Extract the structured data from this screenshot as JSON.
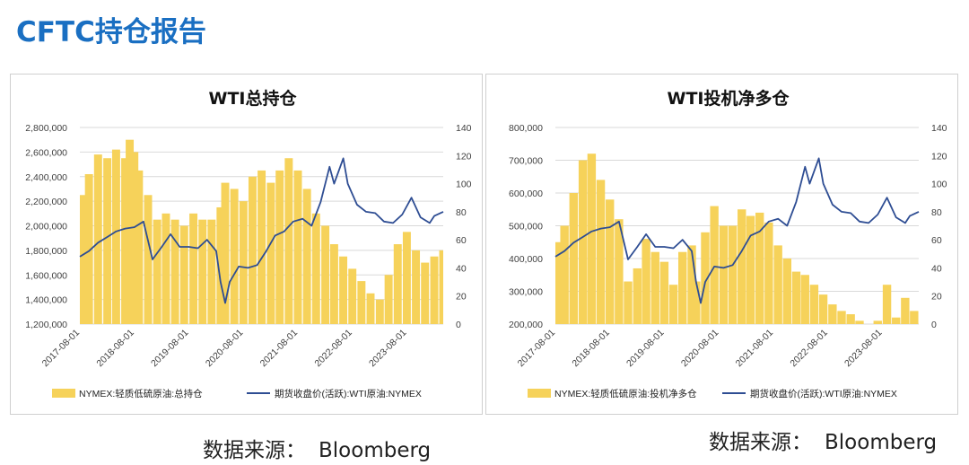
{
  "page": {
    "title": "CFTC持仓报告"
  },
  "colors": {
    "title": "#1a6fc2",
    "bar": "#f6d25a",
    "line": "#2e4d93",
    "grid": "#d9d9d9",
    "axis": "#404040"
  },
  "x_ticks": [
    "2017-08-01",
    "2018-08-01",
    "2019-08-01",
    "2020-08-01",
    "2021-08-01",
    "2022-08-01",
    "2023-08-01"
  ],
  "chart_data": [
    {
      "type": "bar",
      "title": "WTI总持仓",
      "grid": true,
      "legend_position": "bottom",
      "y_left": {
        "min": 1200000,
        "max": 2800000,
        "step": 200000,
        "labels": [
          "1,200,000",
          "1,400,000",
          "1,600,000",
          "1,800,000",
          "2,000,000",
          "2,200,000",
          "2,400,000",
          "2,600,000",
          "2,800,000"
        ]
      },
      "y_right": {
        "min": 0,
        "max": 140,
        "step": 20,
        "labels": [
          "0",
          "20",
          "40",
          "60",
          "80",
          "100",
          "120",
          "140"
        ]
      },
      "x_range": [
        "2017-08-01",
        "2024-04-01"
      ],
      "series": [
        {
          "name": "NYMEX:轻质低硫原油:总持仓",
          "type": "bar",
          "axis": "left",
          "x": [
            "2017-08-01",
            "2017-10-01",
            "2017-12-01",
            "2018-02-01",
            "2018-04-01",
            "2018-06-01",
            "2018-07-01",
            "2018-08-01",
            "2018-09-01",
            "2018-11-01",
            "2019-01-01",
            "2019-03-01",
            "2019-05-01",
            "2019-07-01",
            "2019-09-01",
            "2019-11-01",
            "2020-01-01",
            "2020-03-01",
            "2020-04-01",
            "2020-06-01",
            "2020-08-01",
            "2020-10-01",
            "2020-12-01",
            "2021-02-01",
            "2021-04-01",
            "2021-06-01",
            "2021-08-01",
            "2021-10-01",
            "2021-12-01",
            "2022-02-01",
            "2022-04-01",
            "2022-06-01",
            "2022-08-01",
            "2022-10-01",
            "2022-12-01",
            "2023-02-01",
            "2023-04-01",
            "2023-06-01",
            "2023-08-01",
            "2023-10-01",
            "2023-12-01",
            "2024-02-01",
            "2024-04-01"
          ],
          "values": [
            2250000,
            2420000,
            2580000,
            2550000,
            2620000,
            2550000,
            2700000,
            2600000,
            2450000,
            2250000,
            2050000,
            2100000,
            2050000,
            2000000,
            2100000,
            2050000,
            2050000,
            2150000,
            2350000,
            2300000,
            2200000,
            2400000,
            2450000,
            2350000,
            2450000,
            2550000,
            2450000,
            2300000,
            2100000,
            2000000,
            1850000,
            1750000,
            1650000,
            1550000,
            1450000,
            1400000,
            1600000,
            1850000,
            1950000,
            1800000,
            1700000,
            1750000,
            1800000
          ]
        },
        {
          "name": "期货收盘价(活跃):WTI原油:NYMEX",
          "type": "line",
          "axis": "right",
          "x": [
            "2017-08-01",
            "2017-10-01",
            "2017-12-01",
            "2018-02-01",
            "2018-04-01",
            "2018-06-01",
            "2018-08-01",
            "2018-10-01",
            "2018-12-01",
            "2019-02-01",
            "2019-04-01",
            "2019-06-01",
            "2019-08-01",
            "2019-10-01",
            "2019-12-01",
            "2020-02-01",
            "2020-03-01",
            "2020-04-01",
            "2020-05-01",
            "2020-07-01",
            "2020-09-01",
            "2020-11-01",
            "2021-01-01",
            "2021-03-01",
            "2021-05-01",
            "2021-07-01",
            "2021-09-01",
            "2021-11-01",
            "2022-01-01",
            "2022-03-01",
            "2022-04-01",
            "2022-06-01",
            "2022-07-01",
            "2022-09-01",
            "2022-11-01",
            "2023-01-01",
            "2023-03-01",
            "2023-05-01",
            "2023-07-01",
            "2023-09-01",
            "2023-11-01",
            "2024-01-01",
            "2024-02-01",
            "2024-04-01"
          ],
          "values": [
            48,
            52,
            58,
            62,
            66,
            68,
            69,
            73,
            46,
            55,
            64,
            55,
            55,
            54,
            60,
            52,
            30,
            15,
            30,
            41,
            40,
            42,
            52,
            63,
            66,
            73,
            75,
            70,
            87,
            112,
            100,
            118,
            100,
            85,
            80,
            79,
            73,
            72,
            78,
            90,
            76,
            72,
            77,
            80
          ]
        }
      ]
    },
    {
      "type": "bar",
      "title": "WTI投机净多仓",
      "grid": true,
      "legend_position": "bottom",
      "y_left": {
        "min": 200000,
        "max": 800000,
        "step": 100000,
        "labels": [
          "200,000",
          "300,000",
          "400,000",
          "500,000",
          "600,000",
          "700,000",
          "800,000"
        ]
      },
      "y_right": {
        "min": 0,
        "max": 140,
        "step": 20,
        "labels": [
          "0",
          "20",
          "40",
          "60",
          "80",
          "100",
          "120",
          "140"
        ]
      },
      "x_range": [
        "2017-08-01",
        "2024-04-01"
      ],
      "series": [
        {
          "name": "NYMEX:轻质低硫原油:投机净多仓",
          "type": "bar",
          "axis": "left",
          "x": [
            "2017-08-01",
            "2017-10-01",
            "2017-12-01",
            "2018-02-01",
            "2018-04-01",
            "2018-06-01",
            "2018-08-01",
            "2018-10-01",
            "2018-12-01",
            "2019-02-01",
            "2019-04-01",
            "2019-06-01",
            "2019-08-01",
            "2019-10-01",
            "2019-12-01",
            "2020-02-01",
            "2020-03-01",
            "2020-05-01",
            "2020-07-01",
            "2020-09-01",
            "2020-11-01",
            "2021-01-01",
            "2021-03-01",
            "2021-05-01",
            "2021-07-01",
            "2021-09-01",
            "2021-11-01",
            "2022-01-01",
            "2022-03-01",
            "2022-05-01",
            "2022-07-01",
            "2022-09-01",
            "2022-11-01",
            "2023-01-01",
            "2023-03-01",
            "2023-05-01",
            "2023-07-01",
            "2023-09-01",
            "2023-11-01",
            "2024-01-01",
            "2024-03-01"
          ],
          "values": [
            450000,
            500000,
            600000,
            700000,
            720000,
            640000,
            580000,
            520000,
            330000,
            370000,
            460000,
            420000,
            390000,
            320000,
            420000,
            440000,
            330000,
            480000,
            560000,
            500000,
            500000,
            550000,
            530000,
            540000,
            510000,
            440000,
            400000,
            360000,
            350000,
            320000,
            290000,
            260000,
            240000,
            230000,
            210000,
            200000,
            210000,
            320000,
            220000,
            280000,
            240000
          ]
        },
        {
          "name": "期货收盘价(活跃):WTI原油:NYMEX",
          "type": "line",
          "axis": "right",
          "x": [
            "2017-08-01",
            "2017-10-01",
            "2017-12-01",
            "2018-02-01",
            "2018-04-01",
            "2018-06-01",
            "2018-08-01",
            "2018-10-01",
            "2018-12-01",
            "2019-02-01",
            "2019-04-01",
            "2019-06-01",
            "2019-08-01",
            "2019-10-01",
            "2019-12-01",
            "2020-02-01",
            "2020-03-01",
            "2020-04-01",
            "2020-05-01",
            "2020-07-01",
            "2020-09-01",
            "2020-11-01",
            "2021-01-01",
            "2021-03-01",
            "2021-05-01",
            "2021-07-01",
            "2021-09-01",
            "2021-11-01",
            "2022-01-01",
            "2022-03-01",
            "2022-04-01",
            "2022-06-01",
            "2022-07-01",
            "2022-09-01",
            "2022-11-01",
            "2023-01-01",
            "2023-03-01",
            "2023-05-01",
            "2023-07-01",
            "2023-09-01",
            "2023-11-01",
            "2024-01-01",
            "2024-02-01",
            "2024-04-01"
          ],
          "values": [
            48,
            52,
            58,
            62,
            66,
            68,
            69,
            73,
            46,
            55,
            64,
            55,
            55,
            54,
            60,
            52,
            30,
            15,
            30,
            41,
            40,
            42,
            52,
            63,
            66,
            73,
            75,
            70,
            87,
            112,
            100,
            118,
            100,
            85,
            80,
            79,
            73,
            72,
            78,
            90,
            76,
            72,
            77,
            80
          ]
        }
      ]
    }
  ],
  "sources": [
    {
      "label": "数据来源：",
      "name": "Bloomberg"
    },
    {
      "label": "数据来源：",
      "name": "Bloomberg"
    }
  ]
}
